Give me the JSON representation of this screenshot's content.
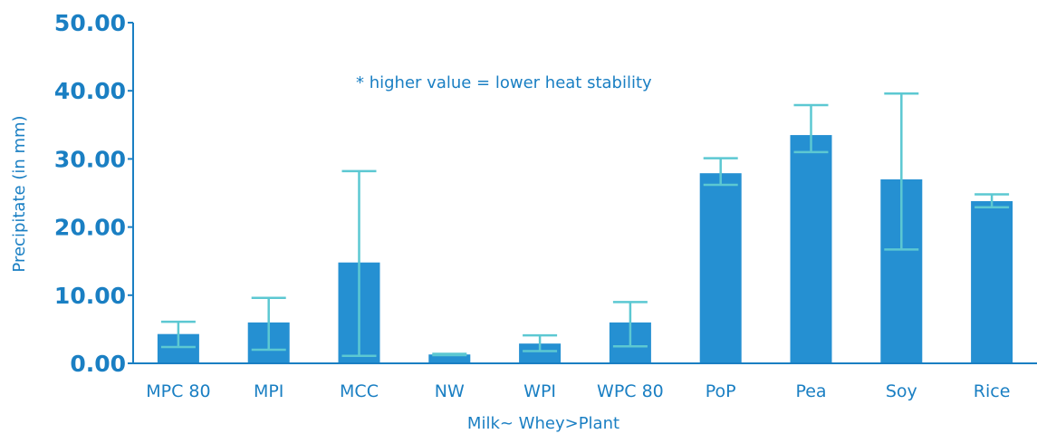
{
  "chart_data": {
    "type": "bar",
    "categories": [
      "MPC 80",
      "MPI",
      "MCC",
      "NW",
      "WPI",
      "WPC 80",
      "PoP",
      "Pea",
      "Soy",
      "Rice"
    ],
    "values": [
      4.3,
      6.0,
      14.8,
      1.3,
      2.9,
      6.0,
      27.9,
      33.5,
      27.0,
      23.8
    ],
    "error_low": [
      2.4,
      2.0,
      1.1,
      1.2,
      1.8,
      2.5,
      26.2,
      31.0,
      16.7,
      22.9
    ],
    "error_high": [
      6.1,
      9.6,
      28.2,
      1.4,
      4.1,
      9.0,
      30.1,
      37.9,
      39.6,
      24.8
    ],
    "xlabel": "Milk~ Whey>Plant",
    "ylabel": "Precipitate (in mm)",
    "ylim": [
      0,
      50
    ],
    "yticks": [
      "0.00",
      "10.00",
      "20.00",
      "30.00",
      "40.00",
      "50.00"
    ],
    "annotation": "* higher value = lower heat stability",
    "grid": false,
    "colors": {
      "bar": "#2590d2",
      "error_bar": "#5cc8d2",
      "axis": "#1a7fc3",
      "text": "#1a7fc3"
    }
  }
}
